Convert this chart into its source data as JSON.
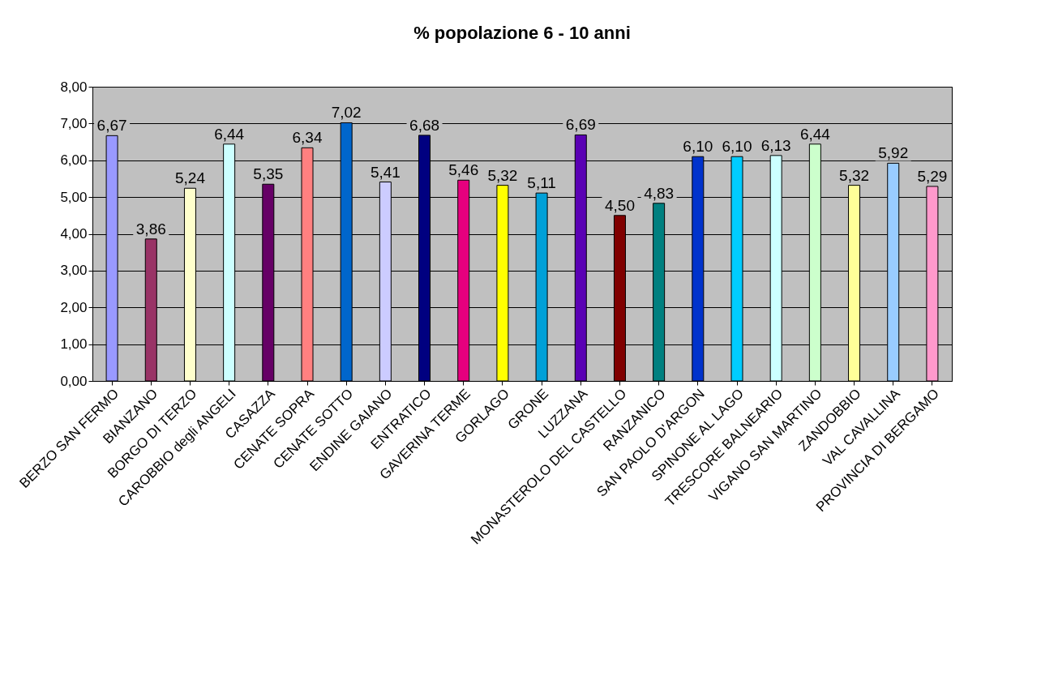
{
  "chart_data": {
    "type": "bar",
    "title": "%  popolazione 6 - 10 anni",
    "categories": [
      "BERZO SAN FERMO",
      "BIANZANO",
      "BORGO DI TERZO",
      "CAROBBIO degli ANGELI",
      "CASAZZA",
      "CENATE SOPRA",
      "CENATE SOTTO",
      "ENDINE GAIANO",
      "ENTRATICO",
      "GAVERINA TERME",
      "GORLAGO",
      "GRONE",
      "LUZZANA",
      "MONASTEROLO DEL CASTELLO",
      "RANZANICO",
      "SAN PAOLO D'ARGON",
      "SPINONE AL LAGO",
      "TRESCORE BALNEARIO",
      "VIGANO SAN MARTINO",
      "ZANDOBBIO",
      "VAL CAVALLINA",
      "PROVINCIA DI BERGAMO"
    ],
    "values": [
      6.67,
      3.86,
      5.24,
      6.44,
      5.35,
      6.34,
      7.02,
      5.41,
      6.68,
      5.46,
      5.32,
      5.11,
      6.69,
      4.5,
      4.83,
      6.1,
      6.1,
      6.13,
      6.44,
      5.32,
      5.92,
      5.29
    ],
    "colors": [
      "#9999ff",
      "#993366",
      "#ffffcc",
      "#ccffff",
      "#660066",
      "#ff8080",
      "#0066cc",
      "#ccccff",
      "#000080",
      "#e6007e",
      "#ffff00",
      "#00a0d8",
      "#5a00b4",
      "#800000",
      "#008080",
      "#0033cc",
      "#00ccff",
      "#ccffff",
      "#ccffcc",
      "#ffff99",
      "#99ccff",
      "#ff99cc"
    ],
    "ylim": [
      0,
      8
    ],
    "yticks": [
      {
        "value": 0,
        "label": "0,00"
      },
      {
        "value": 1,
        "label": "1,00"
      },
      {
        "value": 2,
        "label": "2,00"
      },
      {
        "value": 3,
        "label": "3,00"
      },
      {
        "value": 4,
        "label": "4,00"
      },
      {
        "value": 5,
        "label": "5,00"
      },
      {
        "value": 6,
        "label": "6,00"
      },
      {
        "value": 7,
        "label": "7,00"
      },
      {
        "value": 8,
        "label": "8,00"
      }
    ],
    "value_labels": [
      "6,67",
      "3,86",
      "5,24",
      "6,44",
      "5,35",
      "6,34",
      "7,02",
      "5,41",
      "6,68",
      "5,46",
      "5,32",
      "5,11",
      "6,69",
      "4,50",
      "4,83",
      "6,10",
      "6,10",
      "6,13",
      "6,44",
      "5,32",
      "5,92",
      "5,29"
    ],
    "grid": "y"
  }
}
